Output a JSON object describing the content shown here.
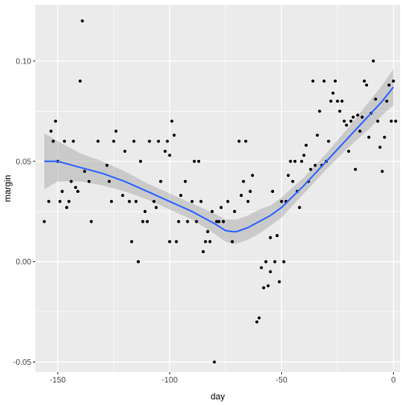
{
  "chart_data": {
    "type": "scatter",
    "title": "",
    "xlabel": "day",
    "ylabel": "margin",
    "xlim": [
      -160,
      3
    ],
    "ylim": [
      -0.055,
      0.128
    ],
    "x_ticks": [
      -150,
      -100,
      -50,
      0
    ],
    "x_tick_labels": [
      "-150",
      "-100",
      "-50",
      "0"
    ],
    "y_ticks": [
      -0.05,
      0.0,
      0.05,
      0.1
    ],
    "y_tick_labels": [
      "-0.05",
      "0.00",
      "0.05",
      "0.10"
    ],
    "grid": true,
    "colors": {
      "panel": "#ebebeb",
      "grid": "#ffffff",
      "points": "#000000",
      "smooth_line": "#3366ff",
      "confidence_band": "#999999"
    },
    "points": [
      [
        -156,
        0.02
      ],
      [
        -154,
        0.03
      ],
      [
        -153,
        0.065
      ],
      [
        -152,
        0.06
      ],
      [
        -151,
        0.07
      ],
      [
        -150,
        0.05
      ],
      [
        -149,
        0.03
      ],
      [
        -148,
        0.035
      ],
      [
        -147,
        0.06
      ],
      [
        -146,
        0.027
      ],
      [
        -145,
        0.03
      ],
      [
        -144,
        0.04
      ],
      [
        -143,
        0.06
      ],
      [
        -142,
        0.037
      ],
      [
        -141,
        0.035
      ],
      [
        -140,
        0.09
      ],
      [
        -139,
        0.12
      ],
      [
        -138,
        0.045
      ],
      [
        -136,
        0.04
      ],
      [
        -135,
        0.02
      ],
      [
        -132,
        0.06
      ],
      [
        -128,
        0.048
      ],
      [
        -127,
        0.04
      ],
      [
        -126,
        0.03
      ],
      [
        -125,
        0.06
      ],
      [
        -124,
        0.065
      ],
      [
        -121,
        0.033
      ],
      [
        -120,
        0.055
      ],
      [
        -118,
        0.03
      ],
      [
        -117,
        0.01
      ],
      [
        -116,
        0.06
      ],
      [
        -115,
        0.03
      ],
      [
        -114,
        0.0
      ],
      [
        -113,
        0.05
      ],
      [
        -112,
        0.02
      ],
      [
        -111,
        0.025
      ],
      [
        -110,
        0.02
      ],
      [
        -109,
        0.06
      ],
      [
        -107,
        0.03
      ],
      [
        -106,
        0.027
      ],
      [
        -105,
        0.06
      ],
      [
        -104,
        0.04
      ],
      [
        -102,
        0.055
      ],
      [
        -101,
        0.06
      ],
      [
        -100,
        0.053
      ],
      [
        -100,
        0.01
      ],
      [
        -99,
        0.07
      ],
      [
        -98,
        0.063
      ],
      [
        -97,
        0.01
      ],
      [
        -96,
        0.02
      ],
      [
        -95,
        0.033
      ],
      [
        -93,
        0.04
      ],
      [
        -92,
        0.02
      ],
      [
        -90,
        0.03
      ],
      [
        -89,
        0.05
      ],
      [
        -88,
        0.02
      ],
      [
        -87,
        0.05
      ],
      [
        -86,
        0.03
      ],
      [
        -85,
        0.005
      ],
      [
        -84,
        0.01
      ],
      [
        -83,
        0.015
      ],
      [
        -82,
        0.01
      ],
      [
        -81,
        0.025
      ],
      [
        -80,
        -0.05
      ],
      [
        -79,
        0.02
      ],
      [
        -78,
        0.02
      ],
      [
        -77,
        0.027
      ],
      [
        -76,
        0.02
      ],
      [
        -74,
        0.03
      ],
      [
        -72,
        0.01
      ],
      [
        -71,
        0.025
      ],
      [
        -69,
        0.06
      ],
      [
        -68,
        0.033
      ],
      [
        -67,
        0.04
      ],
      [
        -66,
        0.06
      ],
      [
        -65,
        0.03
      ],
      [
        -64,
        0.035
      ],
      [
        -63,
        0.043
      ],
      [
        -61,
        -0.03
      ],
      [
        -60,
        -0.028
      ],
      [
        -59,
        -0.003
      ],
      [
        -58,
        -0.013
      ],
      [
        -57,
        0.0
      ],
      [
        -56,
        -0.012
      ],
      [
        -55,
        -0.005
      ],
      [
        -55,
        0.012
      ],
      [
        -54,
        0.035
      ],
      [
        -53,
        0.0
      ],
      [
        -52,
        0.013
      ],
      [
        -51,
        -0.01
      ],
      [
        -50,
        0.03
      ],
      [
        -49,
        0.0
      ],
      [
        -48,
        0.03
      ],
      [
        -47,
        0.043
      ],
      [
        -46,
        0.05
      ],
      [
        -45,
        0.04
      ],
      [
        -44,
        0.05
      ],
      [
        -43,
        0.035
      ],
      [
        -42,
        0.027
      ],
      [
        -41,
        0.05
      ],
      [
        -40,
        0.053
      ],
      [
        -39,
        0.058
      ],
      [
        -38,
        0.04
      ],
      [
        -37,
        0.046
      ],
      [
        -36,
        0.09
      ],
      [
        -35,
        0.048
      ],
      [
        -34,
        0.063
      ],
      [
        -33,
        0.075
      ],
      [
        -32,
        0.048
      ],
      [
        -31,
        0.09
      ],
      [
        -30,
        0.05
      ],
      [
        -29,
        0.06
      ],
      [
        -28,
        0.08
      ],
      [
        -27,
        0.084
      ],
      [
        -26,
        0.09
      ],
      [
        -25,
        0.08
      ],
      [
        -24,
        0.075
      ],
      [
        -23,
        0.08
      ],
      [
        -22,
        0.07
      ],
      [
        -21,
        0.068
      ],
      [
        -20,
        0.055
      ],
      [
        -19,
        0.07
      ],
      [
        -18,
        0.072
      ],
      [
        -17,
        0.046
      ],
      [
        -16,
        0.073
      ],
      [
        -15,
        0.065
      ],
      [
        -14,
        0.072
      ],
      [
        -13,
        0.09
      ],
      [
        -12,
        0.088
      ],
      [
        -11,
        0.062
      ],
      [
        -10,
        0.074
      ],
      [
        -9,
        0.1
      ],
      [
        -8,
        0.081
      ],
      [
        -7,
        0.07
      ],
      [
        -6,
        0.057
      ],
      [
        -5,
        0.045
      ],
      [
        -4,
        0.062
      ],
      [
        -3,
        0.08
      ],
      [
        -2,
        0.088
      ],
      [
        -1,
        0.07
      ],
      [
        0,
        0.09
      ],
      [
        1,
        0.07
      ]
    ],
    "smooth": {
      "x": [
        -156,
        -150,
        -140,
        -130,
        -120,
        -110,
        -100,
        -90,
        -80,
        -75,
        -72,
        -70,
        -65,
        -60,
        -55,
        -50,
        -40,
        -30,
        -20,
        -10,
        -5,
        0
      ],
      "y": [
        0.05,
        0.05,
        0.047,
        0.044,
        0.04,
        0.035,
        0.03,
        0.025,
        0.019,
        0.0155,
        0.015,
        0.015,
        0.017,
        0.02,
        0.023,
        0.027,
        0.038,
        0.05,
        0.062,
        0.074,
        0.08,
        0.087
      ],
      "lower": [
        0.036,
        0.04,
        0.04,
        0.038,
        0.035,
        0.031,
        0.026,
        0.021,
        0.014,
        0.01,
        0.009,
        0.009,
        0.011,
        0.014,
        0.018,
        0.022,
        0.034,
        0.046,
        0.057,
        0.067,
        0.073,
        0.078
      ],
      "upper": [
        0.064,
        0.06,
        0.054,
        0.05,
        0.045,
        0.039,
        0.034,
        0.029,
        0.024,
        0.021,
        0.021,
        0.021,
        0.023,
        0.026,
        0.028,
        0.032,
        0.042,
        0.054,
        0.067,
        0.081,
        0.088,
        0.096
      ]
    }
  }
}
